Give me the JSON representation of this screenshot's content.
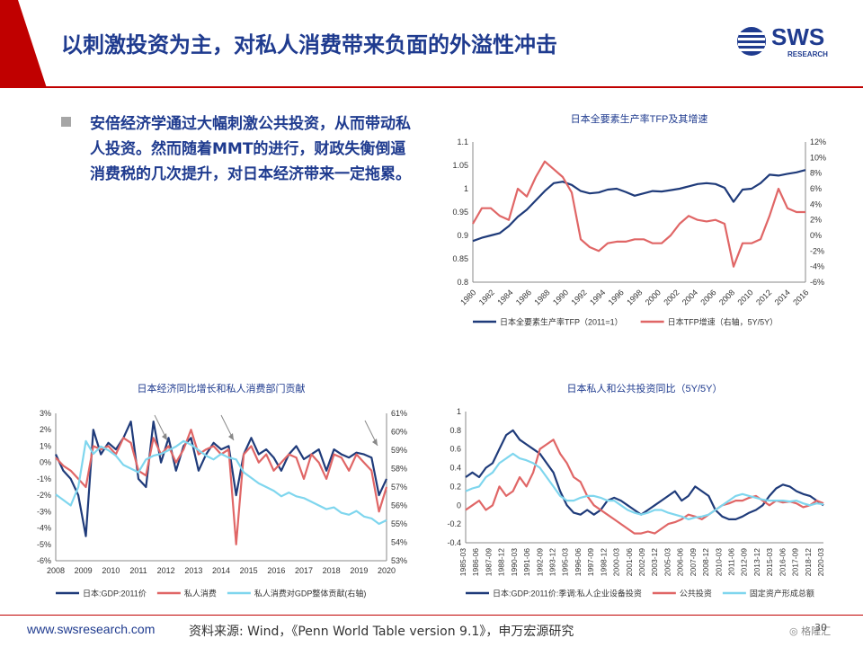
{
  "header": {
    "title": "以刺激投资为主，对私人消费带来负面的外溢性冲击"
  },
  "logo": {
    "text": "SWS",
    "subtext": "RESEARCH"
  },
  "bullet": {
    "text": "安倍经济学通过大幅刺激公共投资，从而带动私人投资。然而随着MMT的进行，财政失衡倒逼消费税的几次提升，对日本经济带来一定拖累。"
  },
  "footer": {
    "url": "www.swsresearch.com",
    "source": "资料来源: Wind，《Penn World Table version 9.1》，申万宏源研究",
    "page": "30"
  },
  "watermark": {
    "text": "格隆汇"
  },
  "colors": {
    "navy": "#1f3b7a",
    "red": "#e06666",
    "cyan": "#7fd6ee",
    "title_blue": "#1f3b8f",
    "accent_red": "#c00000"
  },
  "chart_data": [
    {
      "id": "tfp",
      "type": "line",
      "title": "日本全要素生产率TFP及其增速",
      "x": [
        "1980",
        "1981",
        "1982",
        "1983",
        "1984",
        "1985",
        "1986",
        "1987",
        "1988",
        "1989",
        "1990",
        "1991",
        "1992",
        "1993",
        "1994",
        "1995",
        "1996",
        "1997",
        "1998",
        "1999",
        "2000",
        "2001",
        "2002",
        "2003",
        "2004",
        "2005",
        "2006",
        "2007",
        "2008",
        "2009",
        "2010",
        "2011",
        "2012",
        "2013",
        "2014",
        "2015",
        "2016",
        "2017"
      ],
      "xticks": [
        "1980",
        "1982",
        "1984",
        "1986",
        "1988",
        "1990",
        "1992",
        "1994",
        "1996",
        "1998",
        "2000",
        "2002",
        "2004",
        "2006",
        "2008",
        "2010",
        "2012",
        "2014",
        "2016"
      ],
      "ylim": [
        0.8,
        1.1
      ],
      "yticks": [
        "1.1",
        "1.05",
        "1",
        "0.95",
        "0.9",
        "0.85",
        "0.8"
      ],
      "y2lim": [
        -6,
        12
      ],
      "y2ticks": [
        "12%",
        "10%",
        "8%",
        "6%",
        "4%",
        "2%",
        "0%",
        "-2%",
        "-4%",
        "-6%"
      ],
      "series": [
        {
          "name": "日本全要素生产率TFP（2011=1）",
          "axis": "left",
          "color": "#1f3b7a",
          "values": [
            0.888,
            0.895,
            0.9,
            0.905,
            0.92,
            0.94,
            0.955,
            0.975,
            0.995,
            1.012,
            1.015,
            1.008,
            0.995,
            0.99,
            0.992,
            0.998,
            1.0,
            0.993,
            0.985,
            0.99,
            0.995,
            0.994,
            0.997,
            1.0,
            1.005,
            1.01,
            1.012,
            1.01,
            1.002,
            0.972,
            0.998,
            1.0,
            1.012,
            1.03,
            1.028,
            1.032,
            1.035,
            1.04
          ]
        },
        {
          "name": "日本TFP增速（右轴，5Y/5Y）",
          "axis": "right",
          "color": "#e06666",
          "values": [
            1.5,
            3.5,
            3.5,
            2.5,
            2.0,
            6.0,
            5.0,
            7.5,
            9.5,
            8.5,
            7.5,
            5.5,
            -0.5,
            -1.5,
            -2.0,
            -1.0,
            -0.8,
            -0.8,
            -0.5,
            -0.5,
            -1.0,
            -1.0,
            0.0,
            1.5,
            2.5,
            2.0,
            1.8,
            2.0,
            1.5,
            -4.0,
            -1.0,
            -1.0,
            -0.5,
            2.5,
            6.0,
            3.5,
            3.0,
            3.0
          ]
        }
      ]
    },
    {
      "id": "gdp",
      "type": "line",
      "title": "日本经济同比增长和私人消费部门贡献",
      "xticks": [
        "2008",
        "2009",
        "2010",
        "2011",
        "2012",
        "2013",
        "2014",
        "2015",
        "2016",
        "2017",
        "2018",
        "2019",
        "2020"
      ],
      "xrange": [
        2008,
        2020
      ],
      "ylim": [
        -6,
        3
      ],
      "yticks": [
        "3%",
        "2%",
        "1%",
        "0%",
        "-1%",
        "-2%",
        "-3%",
        "-4%",
        "-5%",
        "-6%"
      ],
      "y2lim": [
        53,
        61
      ],
      "y2ticks": [
        "61%",
        "60%",
        "59%",
        "58%",
        "57%",
        "56%",
        "55%",
        "54%",
        "53%"
      ],
      "series": [
        {
          "name": "日本:GDP:2011价",
          "axis": "left",
          "color": "#1f3b7a",
          "values": [
            0.5,
            -0.5,
            -1.0,
            -2.0,
            -4.5,
            2.0,
            0.5,
            1.2,
            0.8,
            1.5,
            2.5,
            -1.0,
            -1.5,
            2.5,
            0.0,
            1.5,
            -0.5,
            1.0,
            1.5,
            -0.5,
            0.5,
            1.2,
            0.8,
            1.0,
            -2.0,
            0.5,
            1.5,
            0.5,
            0.8,
            0.3,
            -0.5,
            0.5,
            1.0,
            0.2,
            0.5,
            0.8,
            -0.5,
            0.8,
            0.5,
            0.3,
            0.6,
            0.5,
            0.3,
            -2.0,
            -1.0
          ]
        },
        {
          "name": "私人消费",
          "axis": "left",
          "color": "#e06666",
          "values": [
            0.3,
            -0.2,
            -0.5,
            -1.0,
            -1.5,
            1.0,
            0.8,
            1.0,
            0.5,
            1.5,
            1.2,
            -0.5,
            -0.8,
            1.5,
            0.5,
            1.0,
            0.0,
            0.8,
            2.0,
            0.5,
            0.8,
            1.0,
            0.5,
            0.8,
            -5.0,
            0.5,
            1.0,
            0.0,
            0.5,
            -0.5,
            0.0,
            0.5,
            0.3,
            -1.0,
            0.5,
            0.0,
            -1.0,
            0.5,
            0.3,
            -0.5,
            0.5,
            0.0,
            -0.5,
            -3.0,
            -1.5
          ]
        },
        {
          "name": "私人消费对GDP整体贡献(右轴)",
          "axis": "right",
          "color": "#7fd6ee",
          "values": [
            56.6,
            56.3,
            56.0,
            57.0,
            59.5,
            58.8,
            59.2,
            59.0,
            58.7,
            58.2,
            58.0,
            57.8,
            58.5,
            58.7,
            58.8,
            59.0,
            59.2,
            59.5,
            59.3,
            59.0,
            58.7,
            58.5,
            58.8,
            58.6,
            58.5,
            57.8,
            57.5,
            57.2,
            57.0,
            56.8,
            56.5,
            56.7,
            56.5,
            56.4,
            56.2,
            56.0,
            55.8,
            55.9,
            55.6,
            55.5,
            55.7,
            55.4,
            55.3,
            55.0,
            55.2
          ]
        }
      ]
    },
    {
      "id": "invest",
      "type": "line",
      "title": "日本私人和公共投资同比（5Y/5Y）",
      "xticks": [
        "1985-03",
        "1986-06",
        "1987-09",
        "1988-12",
        "1990-03",
        "1991-06",
        "1992-09",
        "1993-12",
        "1995-03",
        "1996-06",
        "1997-09",
        "1998-12",
        "2000-03",
        "2001-06",
        "2002-09",
        "2003-12",
        "2005-03",
        "2006-06",
        "2007-09",
        "2008-12",
        "2010-03",
        "2011-06",
        "2012-09",
        "2013-12",
        "2015-03",
        "2016-06",
        "2017-09",
        "2018-12",
        "2020-03"
      ],
      "ylim": [
        -0.4,
        1.0
      ],
      "yticks": [
        "1",
        "0.8",
        "0.6",
        "0.4",
        "0.2",
        "0",
        "-0.2",
        "-0.4"
      ],
      "series": [
        {
          "name": "日本:GDP:2011价:季调:私人企业设备投资",
          "color": "#1f3b7a",
          "values": [
            0.3,
            0.35,
            0.3,
            0.4,
            0.45,
            0.6,
            0.75,
            0.8,
            0.7,
            0.65,
            0.6,
            0.55,
            0.45,
            0.35,
            0.15,
            0.0,
            -0.08,
            -0.1,
            -0.05,
            -0.1,
            -0.05,
            0.05,
            0.08,
            0.05,
            0.0,
            -0.05,
            -0.1,
            -0.05,
            0.0,
            0.05,
            0.1,
            0.15,
            0.05,
            0.1,
            0.2,
            0.15,
            0.1,
            -0.05,
            -0.12,
            -0.15,
            -0.15,
            -0.12,
            -0.08,
            -0.05,
            0.0,
            0.1,
            0.18,
            0.22,
            0.2,
            0.15,
            0.12,
            0.1,
            0.05,
            0.0
          ]
        },
        {
          "name": "公共投资",
          "color": "#e06666",
          "values": [
            -0.05,
            0.0,
            0.05,
            -0.05,
            0.0,
            0.2,
            0.1,
            0.15,
            0.3,
            0.2,
            0.35,
            0.6,
            0.65,
            0.7,
            0.55,
            0.45,
            0.3,
            0.25,
            0.1,
            0.0,
            -0.05,
            -0.1,
            -0.15,
            -0.2,
            -0.25,
            -0.3,
            -0.3,
            -0.28,
            -0.3,
            -0.25,
            -0.2,
            -0.18,
            -0.15,
            -0.1,
            -0.12,
            -0.15,
            -0.1,
            -0.05,
            0.0,
            0.02,
            0.05,
            0.05,
            0.08,
            0.1,
            0.05,
            0.0,
            0.05,
            0.03,
            0.04,
            0.02,
            -0.02,
            0.0,
            0.05,
            0.02
          ]
        },
        {
          "name": "固定资产形成总额",
          "color": "#7fd6ee",
          "values": [
            0.15,
            0.18,
            0.2,
            0.3,
            0.35,
            0.45,
            0.5,
            0.55,
            0.5,
            0.48,
            0.45,
            0.4,
            0.3,
            0.2,
            0.1,
            0.05,
            0.05,
            0.08,
            0.1,
            0.1,
            0.08,
            0.05,
            0.05,
            0.0,
            -0.05,
            -0.08,
            -0.1,
            -0.08,
            -0.05,
            -0.05,
            -0.08,
            -0.1,
            -0.12,
            -0.15,
            -0.13,
            -0.12,
            -0.1,
            -0.05,
            0.0,
            0.05,
            0.1,
            0.12,
            0.1,
            0.08,
            0.06,
            0.05,
            0.05,
            0.05,
            0.04,
            0.05,
            0.02,
            0.0,
            0.02,
            0.01
          ]
        }
      ]
    }
  ]
}
